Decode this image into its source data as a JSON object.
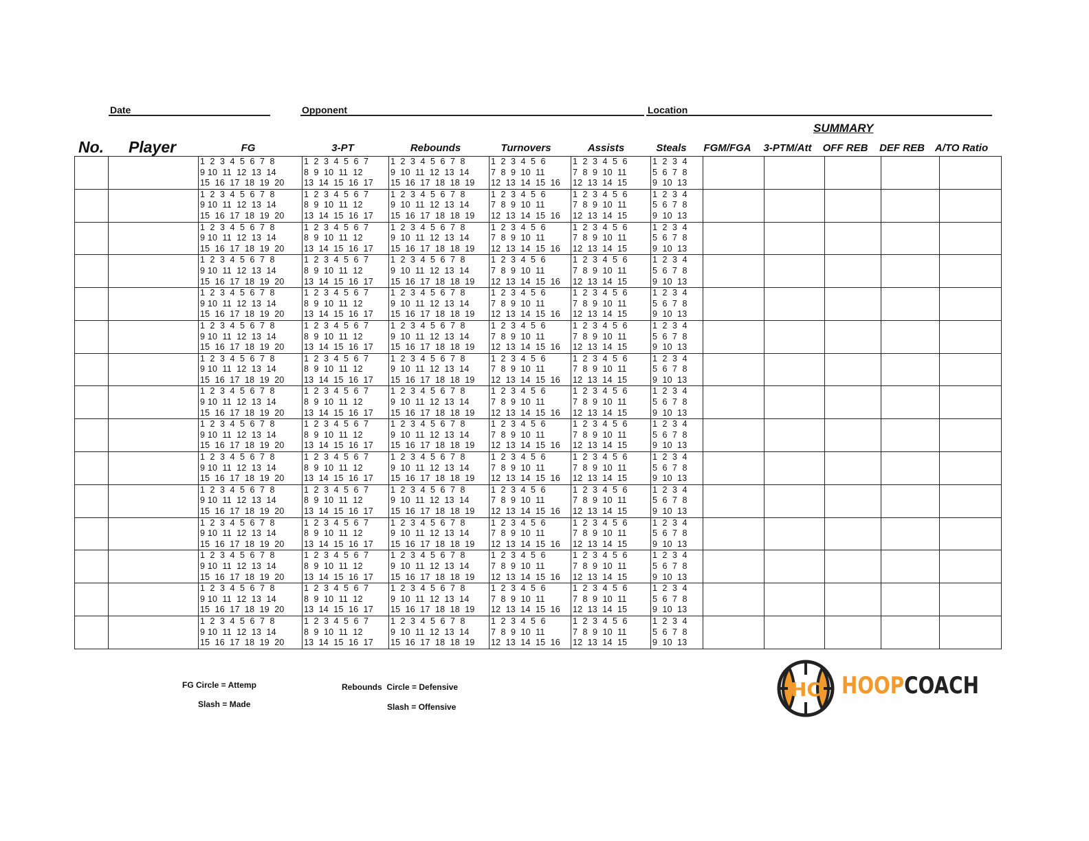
{
  "form": {
    "date_label": "Date",
    "opponent_label": "Opponent",
    "location_label": "Location"
  },
  "summary_title": "SUMMARY",
  "headers": {
    "no": "No.",
    "player": "Player",
    "fg": "FG",
    "three_pt": "3-PT",
    "rebounds": "Rebounds",
    "turnovers": "Turnovers",
    "assists": "Assists",
    "steals": "Steals",
    "fgm_fga": "FGM/FGA",
    "three_ptm_att": "3-PTM/Att",
    "off_reb": "OFF REB",
    "def_reb": "DEF REB",
    "ato_ratio": "A/TO Ratio"
  },
  "tally": {
    "fg": [
      "1  2  3  4  5  6  7  8",
      "9 10  11  12  13  14",
      "15  16  17  18  19  20"
    ],
    "three_pt": [
      "1  2  3  4  5  6  7",
      "8  9  10  11  12",
      "13  14  15  16  17"
    ],
    "rebounds": [
      "1  2  3  4  5  6  7  8",
      "9  10  11  12  13  14",
      "15  16  17  18  18  19"
    ],
    "turnovers": [
      "1  2  3  4  5  6",
      "7  8  9  10  11",
      "12  13  14  15  16"
    ],
    "assists": [
      "1  2  3  4  5  6",
      "7  8  9  10  11",
      "12  13  14  15"
    ],
    "steals": [
      "1  2  3  4",
      "5  6  7  8",
      "9  10  13"
    ]
  },
  "footer": {
    "fg_circle": "FG Circle = Attemp",
    "fg_slash": "Slash = Made",
    "reb_circle": "Rebounds  Circle = Defensive",
    "reb_slash": "Slash = Offensive"
  },
  "logo": {
    "mark": "HC",
    "word1": "HOOP",
    "word2": "COACH",
    "orange": "#F29A2E",
    "dark": "#222222"
  }
}
